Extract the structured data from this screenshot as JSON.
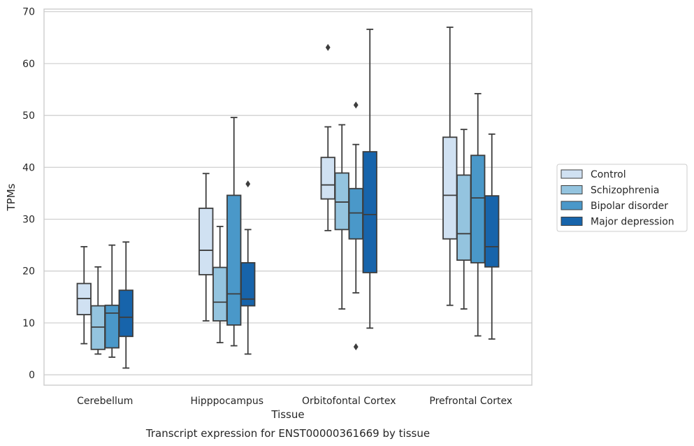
{
  "chart_data": {
    "type": "box",
    "xlabel": "Tissue",
    "ylabel": "TPMs",
    "caption": "Transcript expression for ENST00000361669 by tissue",
    "ylim": [
      -2,
      70.5
    ],
    "yticks": [
      0,
      10,
      20,
      30,
      40,
      50,
      60,
      70
    ],
    "grid": "horizontal",
    "legend_position": "right",
    "categories": [
      "Cerebellum",
      "Hipppocampus",
      "Orbitofontal Cortex",
      "Prefrontal Cortex"
    ],
    "series": [
      {
        "name": "Control",
        "color": "#d0e1f2",
        "boxes": [
          {
            "whislo": 6.0,
            "q1": 11.6,
            "med": 14.7,
            "q3": 17.6,
            "whishi": 24.7,
            "fliers": []
          },
          {
            "whislo": 10.4,
            "q1": 19.3,
            "med": 24.0,
            "q3": 32.1,
            "whishi": 38.8,
            "fliers": []
          },
          {
            "whislo": 27.8,
            "q1": 33.9,
            "med": 36.6,
            "q3": 41.9,
            "whishi": 47.8,
            "fliers": [
              63.1
            ]
          },
          {
            "whislo": 13.4,
            "q1": 26.2,
            "med": 34.6,
            "q3": 45.8,
            "whishi": 67.0,
            "fliers": []
          }
        ]
      },
      {
        "name": "Schizophrenia",
        "color": "#94c4df",
        "boxes": [
          {
            "whislo": 4.0,
            "q1": 4.9,
            "med": 9.2,
            "q3": 13.3,
            "whishi": 20.8,
            "fliers": []
          },
          {
            "whislo": 6.2,
            "q1": 10.4,
            "med": 14.0,
            "q3": 20.7,
            "whishi": 28.6,
            "fliers": []
          },
          {
            "whislo": 12.7,
            "q1": 28.0,
            "med": 33.3,
            "q3": 38.9,
            "whishi": 48.2,
            "fliers": []
          },
          {
            "whislo": 12.7,
            "q1": 22.1,
            "med": 27.2,
            "q3": 38.5,
            "whishi": 47.3,
            "fliers": []
          }
        ]
      },
      {
        "name": "Bipolar disorder",
        "color": "#4a98c9",
        "boxes": [
          {
            "whislo": 3.4,
            "q1": 5.2,
            "med": 11.9,
            "q3": 13.4,
            "whishi": 25.0,
            "fliers": []
          },
          {
            "whislo": 5.6,
            "q1": 9.6,
            "med": 15.6,
            "q3": 34.6,
            "whishi": 49.6,
            "fliers": []
          },
          {
            "whislo": 15.8,
            "q1": 26.2,
            "med": 31.2,
            "q3": 35.9,
            "whishi": 44.4,
            "fliers": [
              52.0,
              5.4
            ]
          },
          {
            "whislo": 7.5,
            "q1": 21.6,
            "med": 34.1,
            "q3": 42.3,
            "whishi": 54.2,
            "fliers": []
          }
        ]
      },
      {
        "name": "Major depression",
        "color": "#1764ab",
        "boxes": [
          {
            "whislo": 1.3,
            "q1": 7.4,
            "med": 11.1,
            "q3": 16.3,
            "whishi": 25.6,
            "fliers": []
          },
          {
            "whislo": 4.0,
            "q1": 13.3,
            "med": 14.6,
            "q3": 21.6,
            "whishi": 28.0,
            "fliers": [
              36.8
            ]
          },
          {
            "whislo": 9.0,
            "q1": 19.7,
            "med": 30.9,
            "q3": 43.0,
            "whishi": 66.6,
            "fliers": []
          },
          {
            "whislo": 6.9,
            "q1": 20.8,
            "med": 24.7,
            "q3": 34.5,
            "whishi": 46.4,
            "fliers": []
          }
        ]
      }
    ]
  }
}
